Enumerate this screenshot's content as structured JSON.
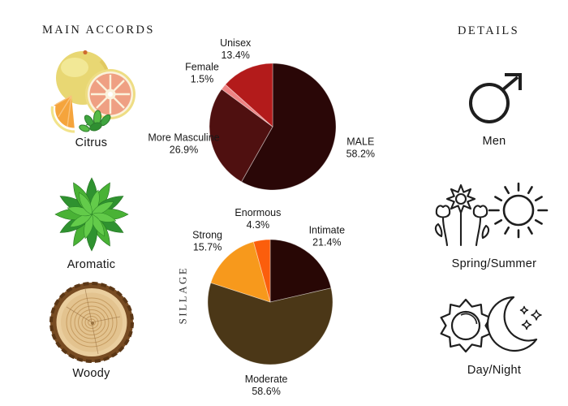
{
  "left_panel": {
    "header": "MAIN ACCORDS",
    "accords": [
      {
        "label": "Citrus",
        "image": "citrus-fruit-photo"
      },
      {
        "label": "Aromatic",
        "image": "mint-leaves-photo"
      },
      {
        "label": "Woody",
        "image": "wood-slice-photo"
      }
    ]
  },
  "right_panel": {
    "header": "DETAILS",
    "details": [
      {
        "label": "Men",
        "icons": [
          "male-symbol-icon"
        ]
      },
      {
        "label": "Spring/Summer",
        "icons": [
          "flowers-icon",
          "sun-icon"
        ]
      },
      {
        "label": "Day/Night",
        "icons": [
          "sun-outline-icon",
          "crescent-moon-stars-icon"
        ]
      }
    ]
  },
  "chart_data": [
    {
      "type": "pie",
      "name": "gender-votes",
      "axis_label": "",
      "labels": [
        "MALE",
        "More Masculine",
        "Female",
        "Unisex"
      ],
      "values": [
        58.2,
        26.9,
        1.5,
        13.4
      ],
      "colors": [
        "#2a0707",
        "#4f1010",
        "#ee8383",
        "#b31b1b"
      ],
      "start_angle_deg": 0,
      "direction": "clockwise",
      "labels_position": "outside",
      "legend": "none"
    },
    {
      "type": "pie",
      "name": "sillage-votes",
      "axis_label": "SILLAGE",
      "labels": [
        "Intimate",
        "Moderate",
        "Strong",
        "Enormous"
      ],
      "values": [
        21.4,
        58.6,
        15.7,
        4.3
      ],
      "colors": [
        "#280705",
        "#4b3717",
        "#f7991c",
        "#fb5e0c"
      ],
      "start_angle_deg": 0,
      "direction": "clockwise",
      "labels_position": "outside",
      "legend": "none"
    }
  ]
}
